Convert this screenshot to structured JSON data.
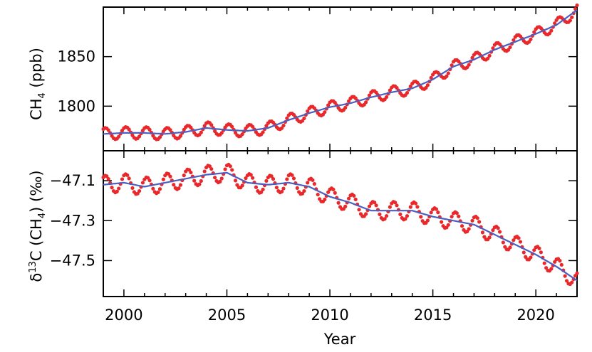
{
  "chart_data": [
    {
      "type": "line",
      "title": "",
      "ylabel": {
        "main": "CH",
        "sub": "4",
        "unit": "(ppb)"
      },
      "xlim": [
        1999.0,
        2022.0
      ],
      "ylim": [
        1755,
        1900
      ],
      "yticks": [
        1800,
        1850
      ],
      "ytick_labels": [
        "1800",
        "1850"
      ],
      "series": [
        {
          "style": "monthly-dots",
          "color": "#e8282a",
          "x": [
            1999.0,
            2000.0,
            2001.0,
            2002.0,
            2003.0,
            2004.0,
            2005.0,
            2006.0,
            2007.0,
            2008.0,
            2009.0,
            2010.0,
            2011.0,
            2012.0,
            2013.0,
            2014.0,
            2015.0,
            2016.0,
            2017.0,
            2018.0,
            2019.0,
            2020.0,
            2021.0,
            2022.0
          ],
          "y": [
            1772,
            1773,
            1773,
            1772,
            1774,
            1778,
            1776,
            1775,
            1778,
            1786,
            1793,
            1799,
            1803,
            1809,
            1814,
            1818,
            1827,
            1840,
            1847,
            1857,
            1865,
            1873,
            1882,
            1897
          ],
          "seasonal_amplitude": 6
        },
        {
          "style": "trend-line",
          "color": "#4a5fc1",
          "x": [
            1999.0,
            2000.0,
            2001.0,
            2002.0,
            2003.0,
            2004.0,
            2005.0,
            2006.0,
            2007.0,
            2008.0,
            2009.0,
            2010.0,
            2011.0,
            2012.0,
            2013.0,
            2014.0,
            2015.0,
            2016.0,
            2017.0,
            2018.0,
            2019.0,
            2020.0,
            2021.0,
            2022.0
          ],
          "y": [
            1772,
            1773,
            1773,
            1772,
            1774,
            1778,
            1776,
            1775,
            1778,
            1786,
            1793,
            1799,
            1803,
            1809,
            1814,
            1818,
            1827,
            1840,
            1847,
            1857,
            1865,
            1873,
            1882,
            1897
          ]
        }
      ]
    },
    {
      "type": "line",
      "title": "",
      "ylabel": {
        "main": "δ",
        "sup": "13",
        "mid": "C (CH",
        "sub": "4",
        "end": ")",
        "unit": "(‰)"
      },
      "xlabel": "Year",
      "xlim": [
        1999.0,
        2022.0
      ],
      "ylim": [
        -47.68,
        -46.95
      ],
      "yticks": [
        -47.1,
        -47.3,
        -47.5
      ],
      "ytick_labels": [
        "−47.1",
        "−47.3",
        "−47.5"
      ],
      "xticks": [
        2000,
        2005,
        2010,
        2015,
        2020
      ],
      "xtick_labels": [
        "2000",
        "2005",
        "2010",
        "2015",
        "2020"
      ],
      "series": [
        {
          "style": "monthly-dots",
          "color": "#e8282a",
          "x": [
            1999.0,
            2000.0,
            2001.0,
            2002.0,
            2003.0,
            2004.0,
            2005.0,
            2006.0,
            2007.0,
            2008.0,
            2009.0,
            2010.0,
            2011.0,
            2012.0,
            2013.0,
            2014.0,
            2015.0,
            2016.0,
            2017.0,
            2018.0,
            2019.0,
            2020.0,
            2021.0,
            2022.0
          ],
          "y": [
            -47.12,
            -47.11,
            -47.13,
            -47.11,
            -47.09,
            -47.07,
            -47.06,
            -47.11,
            -47.12,
            -47.11,
            -47.13,
            -47.18,
            -47.21,
            -47.25,
            -47.25,
            -47.25,
            -47.28,
            -47.3,
            -47.32,
            -47.37,
            -47.42,
            -47.47,
            -47.53,
            -47.6
          ],
          "seasonal_amplitude": 0.045
        },
        {
          "style": "trend-line",
          "color": "#4a5fc1",
          "x": [
            1999.0,
            2000.0,
            2001.0,
            2002.0,
            2003.0,
            2004.0,
            2005.0,
            2006.0,
            2007.0,
            2008.0,
            2009.0,
            2010.0,
            2011.0,
            2012.0,
            2013.0,
            2014.0,
            2015.0,
            2016.0,
            2017.0,
            2018.0,
            2019.0,
            2020.0,
            2021.0,
            2022.0
          ],
          "y": [
            -47.12,
            -47.11,
            -47.13,
            -47.11,
            -47.09,
            -47.07,
            -47.06,
            -47.11,
            -47.12,
            -47.11,
            -47.13,
            -47.18,
            -47.21,
            -47.25,
            -47.25,
            -47.25,
            -47.28,
            -47.3,
            -47.32,
            -47.37,
            -47.42,
            -47.47,
            -47.53,
            -47.6
          ]
        }
      ]
    }
  ]
}
